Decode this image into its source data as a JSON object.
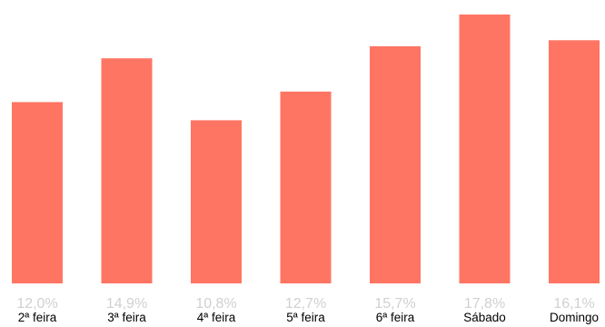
{
  "chart_data": {
    "type": "bar",
    "categories": [
      "2ª feira",
      "3ª feira",
      "4ª feira",
      "5ª feira",
      "6ª feira",
      "Sábado",
      "Domingo"
    ],
    "values": [
      12.0,
      14.9,
      10.8,
      12.7,
      15.7,
      17.8,
      16.1
    ],
    "value_labels": [
      "12,0%",
      "14,9%",
      "10,8%",
      "12,7%",
      "15,7%",
      "17,8%",
      "16,1%"
    ],
    "ylim": [
      0,
      17.8
    ],
    "grid": false,
    "colors": {
      "bar": "#FF7563",
      "value_label": "#d0d0d0",
      "category_label": "#000000"
    }
  }
}
